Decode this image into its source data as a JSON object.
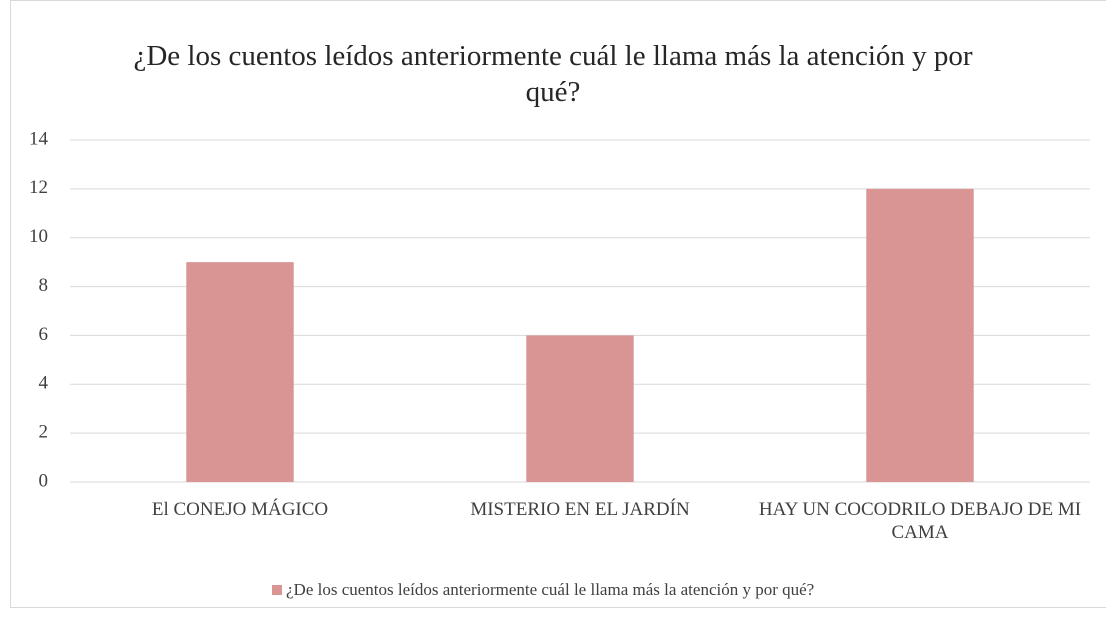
{
  "chart_data": {
    "type": "bar",
    "title": "¿De los cuentos leídos anteriormente cuál le llama más la atención y por qué?",
    "categories": [
      "El CONEJO MÁGICO",
      "MISTERIO EN EL JARDÍN",
      "HAY UN COCODRILO DEBAJO DE MI CAMA"
    ],
    "series": [
      {
        "name": "¿De los cuentos leídos anteriormente cuál le llama más la atención y por qué?",
        "color": "#d99594",
        "values": [
          9,
          6,
          12
        ]
      }
    ],
    "ylim": [
      0,
      14
    ],
    "yticks": [
      0,
      2,
      4,
      6,
      8,
      10,
      12,
      14
    ],
    "grid": true,
    "legend": "bottom"
  }
}
